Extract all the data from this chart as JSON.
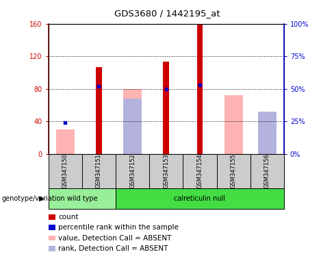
{
  "title": "GDS3680 / 1442195_at",
  "samples": [
    "GSM347150",
    "GSM347151",
    "GSM347152",
    "GSM347153",
    "GSM347154",
    "GSM347155",
    "GSM347156"
  ],
  "count_values": [
    null,
    107,
    null,
    113,
    160,
    null,
    null
  ],
  "count_color": "#cc0000",
  "absent_value_bars": [
    30,
    null,
    80,
    null,
    null,
    72,
    null
  ],
  "absent_rank_bars": [
    null,
    null,
    68,
    null,
    null,
    null,
    52
  ],
  "absent_value_color": "#ffb3b3",
  "absent_rank_color": "#b3b3dd",
  "percentile_rank_left": [
    38,
    83,
    null,
    80,
    85,
    null,
    null
  ],
  "percentile_rank_color": "#0000cc",
  "ylim_left": [
    0,
    160
  ],
  "ylim_right": [
    0,
    100
  ],
  "yticks_left": [
    0,
    40,
    80,
    120,
    160
  ],
  "yticks_right": [
    0,
    25,
    50,
    75,
    100
  ],
  "ytick_labels_left": [
    "0",
    "40",
    "80",
    "120",
    "160"
  ],
  "ytick_labels_right": [
    "0%",
    "25%",
    "50%",
    "75%",
    "100%"
  ],
  "groups": [
    {
      "label": "wild type",
      "span": [
        0,
        1
      ],
      "color": "#99ee99"
    },
    {
      "label": "calreticulin null",
      "span": [
        2,
        6
      ],
      "color": "#44dd44"
    }
  ],
  "group_label": "genotype/variation",
  "plot_bg_color": "#ffffff",
  "sample_box_color": "#cccccc",
  "legend_items": [
    {
      "label": "count",
      "color": "#cc0000"
    },
    {
      "label": "percentile rank within the sample",
      "color": "#0000cc"
    },
    {
      "label": "value, Detection Call = ABSENT",
      "color": "#ffb3b3"
    },
    {
      "label": "rank, Detection Call = ABSENT",
      "color": "#b3b3dd"
    }
  ]
}
